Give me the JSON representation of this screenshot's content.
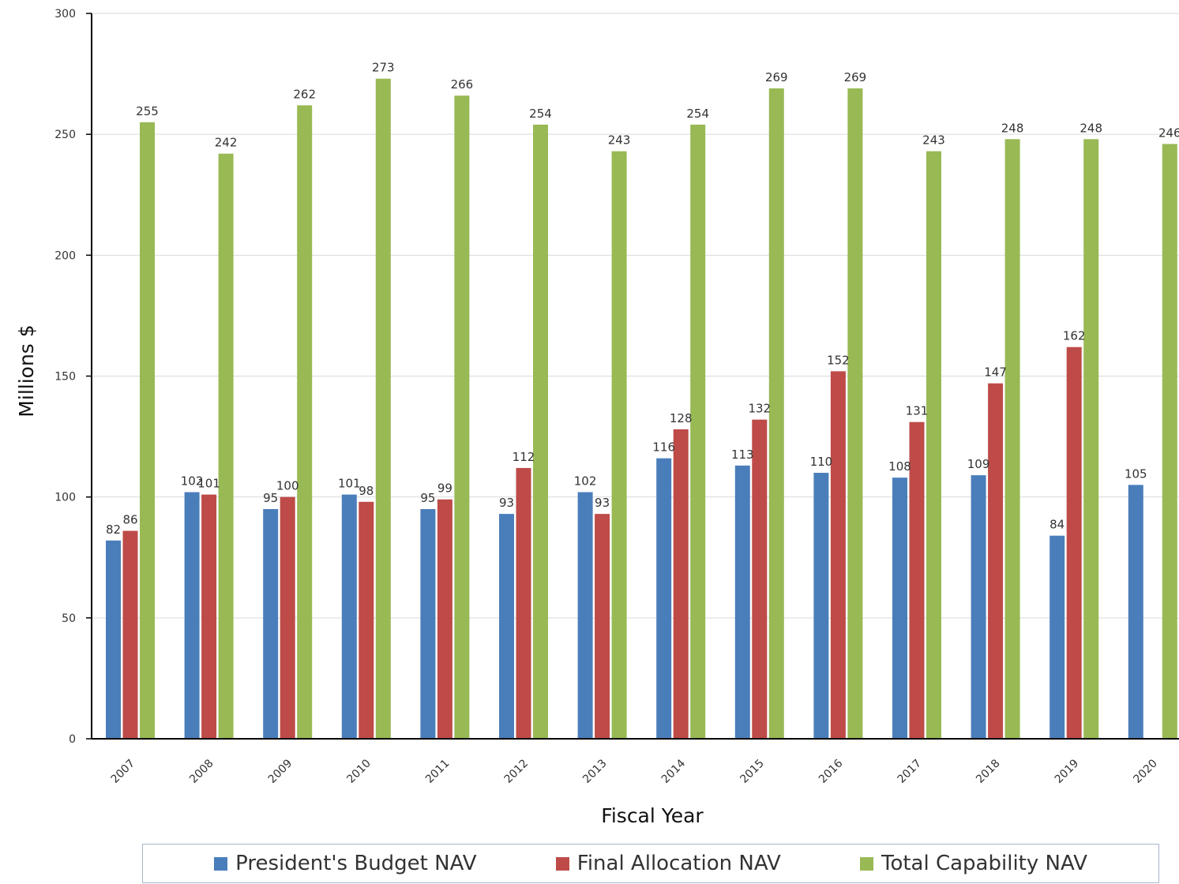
{
  "chart_data": {
    "type": "bar",
    "xlabel": "Fiscal Year",
    "ylabel": "Millions $",
    "ylim": [
      0,
      300
    ],
    "yticks": [
      0,
      50,
      100,
      150,
      200,
      250,
      300
    ],
    "grid": true,
    "legend_position": "bottom",
    "categories": [
      "2007",
      "2008",
      "2009",
      "2010",
      "2011",
      "2012",
      "2013",
      "2014",
      "2015",
      "2016",
      "2017",
      "2018",
      "2019",
      "2020"
    ],
    "series": [
      {
        "name": "President's Budget NAV",
        "color": "#4a7ebb",
        "values": [
          82,
          102,
          95,
          101,
          95,
          93,
          102,
          116,
          113,
          110,
          108,
          109,
          84,
          105
        ]
      },
      {
        "name": "Final Allocation NAV",
        "color": "#be4b48",
        "values": [
          86,
          101,
          100,
          98,
          99,
          112,
          93,
          128,
          132,
          152,
          131,
          147,
          162,
          null
        ]
      },
      {
        "name": "Total Capability NAV",
        "color": "#98b954",
        "values": [
          255,
          242,
          262,
          273,
          266,
          254,
          243,
          254,
          269,
          269,
          243,
          248,
          248,
          246
        ]
      }
    ]
  }
}
